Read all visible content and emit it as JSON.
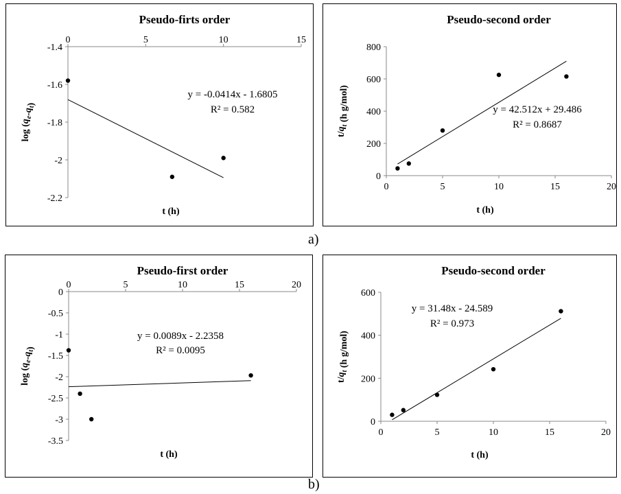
{
  "captions": {
    "a": "a)",
    "b": "b)"
  },
  "chart_data": [
    {
      "type": "scatter",
      "title": "Pseudo-firts order",
      "xlabel": "t (h)",
      "ylabel": "log (q_e-q_t)",
      "xlim": [
        0,
        15
      ],
      "ylim": [
        -2.2,
        -1.4
      ],
      "xticks": [
        "0",
        "5",
        "10",
        "15"
      ],
      "yticks": [
        "-1.4",
        "-1.6",
        "-1.8",
        "-2",
        "-2.2"
      ],
      "x": [
        0,
        6.7,
        10
      ],
      "y": [
        -1.58,
        -2.09,
        -1.99
      ],
      "trendline": {
        "slope": -0.0414,
        "intercept": -1.6805,
        "x_range": [
          0,
          10
        ]
      },
      "equation": "y = -0.0414x - 1.6805",
      "r2": "R² = 0.582"
    },
    {
      "type": "scatter",
      "title": "Pseudo-second order",
      "xlabel": "t (h)",
      "ylabel": "t/q_t (h g/mol)",
      "xlim": [
        0,
        20
      ],
      "ylim": [
        0,
        800
      ],
      "xticks": [
        "0",
        "5",
        "10",
        "15",
        "20"
      ],
      "yticks": [
        "0",
        "200",
        "400",
        "600",
        "800"
      ],
      "x": [
        1,
        2,
        5,
        10,
        16
      ],
      "y": [
        45,
        75,
        280,
        625,
        615
      ],
      "trendline": {
        "slope": 42.512,
        "intercept": 29.486,
        "x_range": [
          1,
          16
        ]
      },
      "equation": "y = 42.512x + 29.486",
      "r2": "R² = 0.8687"
    },
    {
      "type": "scatter",
      "title": "Pseudo-first order",
      "xlabel": "t (h)",
      "ylabel": "log (q_e-q_t)",
      "xlim": [
        0,
        20
      ],
      "ylim": [
        -3.5,
        0
      ],
      "xticks": [
        "0",
        "5",
        "10",
        "15",
        "20"
      ],
      "yticks": [
        "0",
        "-0.5",
        "-1",
        "-1.5",
        "-2",
        "-2.5",
        "-3",
        "-3.5"
      ],
      "x": [
        0,
        1,
        2,
        16
      ],
      "y": [
        -1.38,
        -2.4,
        -3.0,
        -1.97
      ],
      "trendline": {
        "slope": 0.0089,
        "intercept": -2.2358,
        "x_range": [
          0,
          16
        ]
      },
      "equation": "y = 0.0089x - 2.2358",
      "r2": "R² = 0.0095"
    },
    {
      "type": "scatter",
      "title": "Pseudo-second order",
      "xlabel": "t (h)",
      "ylabel": "t/q_t (h g/mol)",
      "xlim": [
        0,
        20
      ],
      "ylim": [
        0,
        600
      ],
      "xticks": [
        "0",
        "5",
        "10",
        "15",
        "20"
      ],
      "yticks": [
        "0",
        "200",
        "400",
        "600"
      ],
      "x": [
        1,
        2,
        5,
        10,
        16
      ],
      "y": [
        30,
        52,
        123,
        242,
        512
      ],
      "trendline": {
        "slope": 31.48,
        "intercept": -24.589,
        "x_range": [
          1,
          16
        ]
      },
      "equation": "y = 31.48x - 24.589",
      "r2": "R² = 0.973"
    }
  ]
}
